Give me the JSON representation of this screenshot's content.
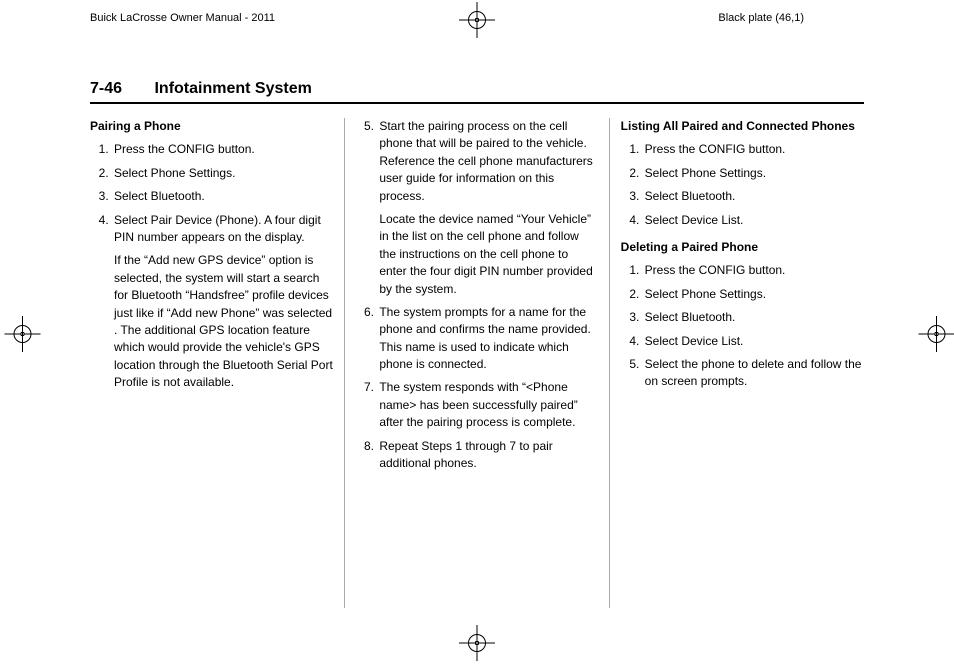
{
  "meta": {
    "doc_title": "Buick LaCrosse Owner Manual - 2011",
    "plate": "Black plate (46,1)"
  },
  "header": {
    "page_number": "7-46",
    "section": "Infotainment System"
  },
  "col1": {
    "h1": "Pairing a Phone",
    "s1": "Press the CONFIG button.",
    "s2": "Select Phone Settings.",
    "s3": "Select Bluetooth.",
    "s4a": "Select Pair Device (Phone). A four digit PIN number appears on the display.",
    "s4b": "If the “Add new GPS device” option is selected, the system will start a search for Bluetooth “Handsfree” profile devices just like if “Add new Phone” was selected . The additional GPS location feature which would provide the vehicle's GPS location through the Bluetooth Serial Port Profile is not available."
  },
  "col2": {
    "s5a": "Start the pairing process on the cell phone that will be paired to the vehicle. Reference the cell phone manufacturers user guide for information on this process.",
    "s5b": "Locate the device named “Your Vehicle” in the list on the cell phone and follow the instructions on the cell phone to enter the four digit PIN number provided by the system.",
    "s6": "The system prompts for a name for the phone and confirms the name provided. This name is used to indicate which phone is connected.",
    "s7": "The system responds with “<Phone name> has been successfully paired” after the pairing process is complete.",
    "s8": "Repeat Steps 1 through 7 to pair additional phones."
  },
  "col3": {
    "h1": "Listing All Paired and Connected Phones",
    "l1": "Press the CONFIG button.",
    "l2": "Select Phone Settings.",
    "l3": "Select Bluetooth.",
    "l4": "Select Device List.",
    "h2": "Deleting a Paired Phone",
    "d1": "Press the CONFIG button.",
    "d2": "Select Phone Settings.",
    "d3": "Select Bluetooth.",
    "d4": "Select Device List.",
    "d5": "Select the phone to delete and follow the on screen prompts."
  }
}
